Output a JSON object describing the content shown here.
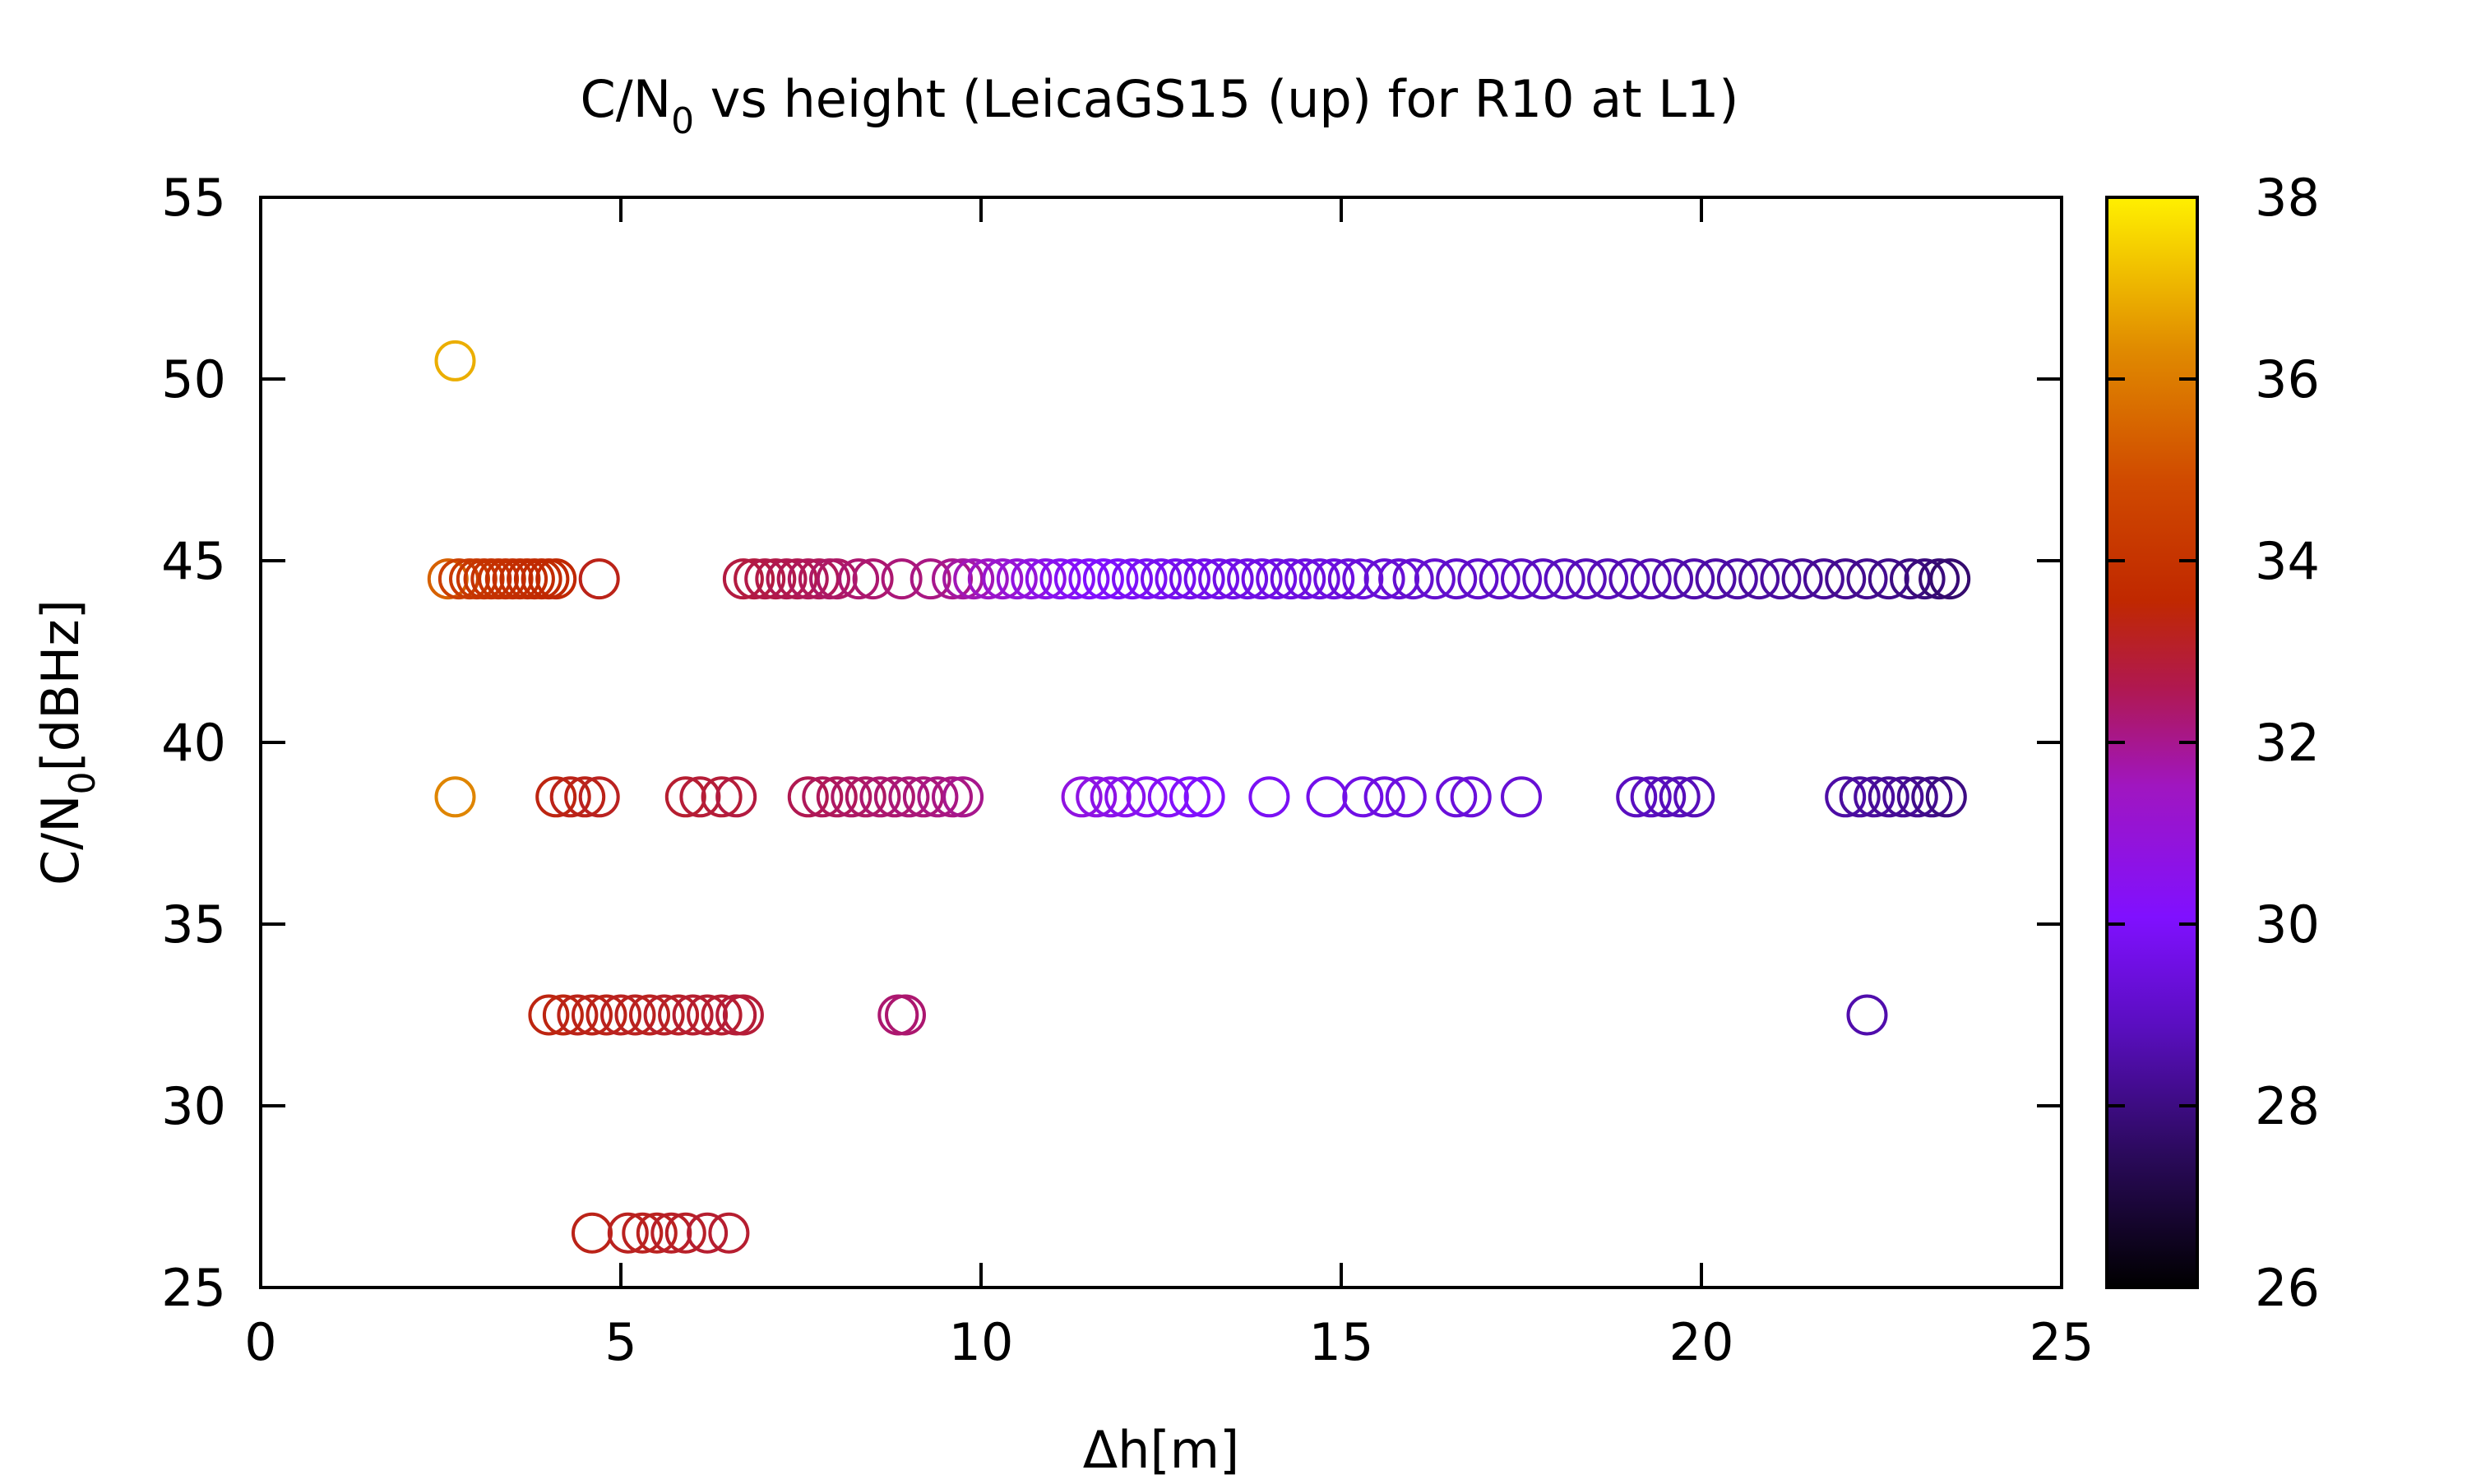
{
  "chart_data": {
    "type": "scatter",
    "title": "C/N0 vs height (LeicaGS15 (up) for R10 at L1)",
    "title_parts": {
      "before": "C/N",
      "subscript": "0",
      "after": " vs height (LeicaGS15 (up) for R10 at L1)"
    },
    "xlabel": "Δh[m]",
    "ylabel": "C/N0[dBHz]",
    "ylabel_parts": {
      "before": "C/N",
      "subscript": "0",
      "after": "[dBHz]"
    },
    "xlim": [
      0,
      25
    ],
    "ylim": [
      25,
      55
    ],
    "x_ticks": [
      "0",
      "5",
      "10",
      "15",
      "20",
      "25"
    ],
    "y_ticks": [
      "25",
      "30",
      "35",
      "40",
      "45",
      "50",
      "55"
    ],
    "colorbar": {
      "range": [
        26,
        38
      ],
      "ticks": [
        "26",
        "28",
        "30",
        "32",
        "34",
        "36",
        "38"
      ],
      "palette": "gnuplot (black-purple-red-orange-yellow)"
    },
    "marker": "open circle",
    "grid": false,
    "groups": [
      {
        "y": 50.5,
        "x": [
          2.7
        ],
        "c": [
          36.9
        ]
      },
      {
        "y": 44.5,
        "x": [
          2.6,
          2.75,
          2.9,
          3.0,
          3.1,
          3.2,
          3.3,
          3.4,
          3.5,
          3.6,
          3.7,
          3.8,
          3.9,
          4.0,
          4.1,
          4.7
        ],
        "c": [
          35.4,
          34.5,
          34.3,
          34.2,
          34.1,
          34.0,
          34.0,
          33.9,
          33.9,
          33.8,
          33.8,
          33.7,
          33.7,
          33.6,
          33.6,
          33.3
        ]
      },
      {
        "y": 44.5,
        "x": [
          6.7,
          6.85,
          7.0,
          7.15,
          7.3,
          7.45,
          7.6,
          7.75,
          7.9,
          8.0,
          8.3,
          8.5,
          8.9,
          9.3,
          9.6,
          9.75,
          9.9,
          10.1,
          10.3,
          10.5,
          10.7,
          10.9,
          11.1,
          11.3,
          11.5,
          11.7,
          11.9,
          12.1,
          12.3,
          12.5,
          12.7,
          12.9,
          13.1,
          13.3,
          13.5,
          13.7,
          13.9,
          14.1,
          14.3,
          14.5,
          14.7,
          14.9,
          15.1,
          15.3,
          15.6,
          15.8,
          16.0,
          16.3,
          16.6,
          16.9,
          17.2,
          17.5,
          17.8,
          18.1,
          18.4,
          18.7,
          19.0,
          19.3,
          19.6,
          19.9,
          20.2,
          20.5,
          20.8,
          21.1,
          21.4,
          21.7,
          22.0,
          22.3,
          22.6,
          22.9,
          23.1,
          23.3,
          23.45
        ],
        "c": [
          32.8,
          32.8,
          32.7,
          32.7,
          32.6,
          32.6,
          32.5,
          32.5,
          32.4,
          32.4,
          32.3,
          32.3,
          32.2,
          32.1,
          32.0,
          31.8,
          31.6,
          31.4,
          31.2,
          31.0,
          30.8,
          30.6,
          30.4,
          30.3,
          30.2,
          30.1,
          30.0,
          29.9,
          29.9,
          29.8,
          29.8,
          29.7,
          29.7,
          29.7,
          29.6,
          29.6,
          29.6,
          29.6,
          29.5,
          29.5,
          29.5,
          29.5,
          29.4,
          29.4,
          29.3,
          29.3,
          29.2,
          29.2,
          29.1,
          29.1,
          29.0,
          29.0,
          28.9,
          28.9,
          28.8,
          28.8,
          28.7,
          28.7,
          28.6,
          28.6,
          28.5,
          28.5,
          28.4,
          28.4,
          28.3,
          28.3,
          28.2,
          28.2,
          28.1,
          28.0,
          27.9,
          27.8,
          27.7
        ]
      },
      {
        "y": 38.5,
        "x": [
          2.7
        ],
        "c": [
          36.2
        ]
      },
      {
        "y": 38.5,
        "x": [
          4.1,
          4.3,
          4.5,
          4.7
        ],
        "c": [
          33.4,
          33.3,
          33.3,
          33.2
        ]
      },
      {
        "y": 38.5,
        "x": [
          5.9,
          6.1,
          6.4,
          6.6
        ],
        "c": [
          33.0,
          32.9,
          32.9,
          32.8
        ]
      },
      {
        "y": 38.5,
        "x": [
          7.6,
          7.8,
          8.0,
          8.2,
          8.4,
          8.6,
          8.8,
          9.0,
          9.2,
          9.4,
          9.6,
          9.75
        ],
        "c": [
          32.6,
          32.5,
          32.5,
          32.4,
          32.4,
          32.3,
          32.3,
          32.2,
          32.2,
          32.1,
          32.1,
          32.0
        ]
      },
      {
        "y": 38.5,
        "x": [
          11.4,
          11.6,
          11.8,
          12.0,
          12.3,
          12.6,
          12.9,
          13.1,
          14.0,
          14.8,
          15.3,
          15.6,
          15.9,
          16.6,
          16.8,
          17.5
        ],
        "c": [
          30.8,
          30.7,
          30.6,
          30.5,
          30.4,
          30.3,
          30.2,
          30.1,
          29.9,
          29.7,
          29.6,
          29.5,
          29.5,
          29.4,
          29.4,
          29.3
        ]
      },
      {
        "y": 38.5,
        "x": [
          19.1,
          19.3,
          19.5,
          19.7,
          19.9
        ],
        "c": [
          28.9,
          28.9,
          28.8,
          28.8,
          28.8
        ]
      },
      {
        "y": 38.5,
        "x": [
          22.0,
          22.2,
          22.4,
          22.6,
          22.8,
          23.0,
          23.2,
          23.4
        ],
        "c": [
          28.5,
          28.4,
          28.4,
          28.3,
          28.3,
          28.2,
          28.1,
          28.0
        ]
      },
      {
        "y": 32.5,
        "x": [
          4.0,
          4.2,
          4.4,
          4.6,
          4.8,
          5.0,
          5.2,
          5.4,
          5.6,
          5.8,
          6.0,
          6.2,
          6.4,
          6.6,
          6.7
        ],
        "c": [
          33.4,
          33.4,
          33.3,
          33.3,
          33.3,
          33.2,
          33.2,
          33.2,
          33.1,
          33.1,
          33.0,
          33.0,
          33.0,
          32.9,
          32.9
        ]
      },
      {
        "y": 32.5,
        "x": [
          8.85,
          8.95
        ],
        "c": [
          32.3,
          32.3
        ]
      },
      {
        "y": 32.5,
        "x": [
          22.3
        ],
        "c": [
          28.6
        ]
      },
      {
        "y": 26.5,
        "x": [
          4.6,
          5.1,
          5.3,
          5.5,
          5.7,
          5.9,
          6.2,
          6.5
        ],
        "c": [
          33.3,
          33.2,
          33.2,
          33.2,
          33.1,
          33.1,
          33.0,
          33.0
        ]
      }
    ]
  }
}
